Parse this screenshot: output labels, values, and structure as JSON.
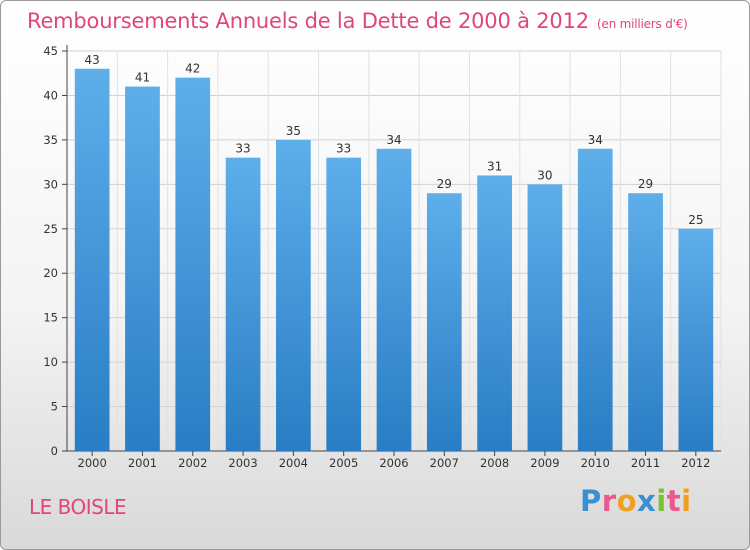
{
  "chart_data": {
    "type": "bar",
    "title": "Remboursements Annuels de la Dette de 2000 à 2012",
    "unit": "(en milliers d'€)",
    "categories": [
      "2000",
      "2001",
      "2002",
      "2003",
      "2004",
      "2005",
      "2006",
      "2007",
      "2008",
      "2009",
      "2010",
      "2011",
      "2012"
    ],
    "values": [
      43,
      41,
      42,
      33,
      35,
      33,
      34,
      29,
      31,
      30,
      34,
      29,
      25
    ],
    "ylim": [
      0,
      45
    ],
    "yticks": [
      0,
      5,
      10,
      15,
      20,
      25,
      30,
      35,
      40,
      45
    ],
    "grid": true,
    "bar_color": "#4a9fe0"
  },
  "footer": {
    "commune": "LE BOISLE",
    "brand_letters": [
      "P",
      "r",
      "o",
      "x",
      "i",
      "t",
      "i"
    ],
    "brand_colors": [
      "#3a8fd0",
      "#e85a8c",
      "#f0a020",
      "#3a8fd0",
      "#7cc230",
      "#e85a8c",
      "#f0a020"
    ]
  }
}
